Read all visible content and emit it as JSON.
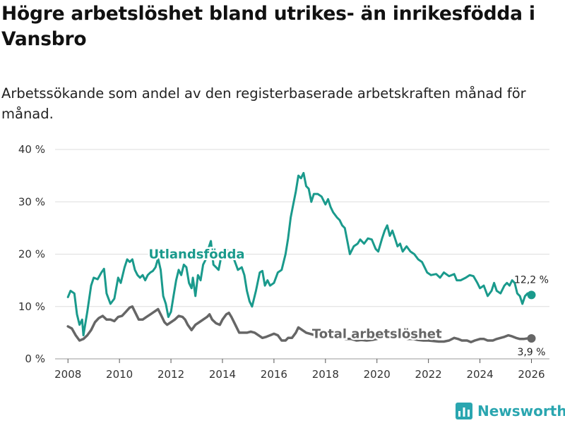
{
  "title": "Högre arbetslöshet bland utrikes- än inrikesfödda i Vansbro",
  "subtitle": "Arbetssökande som andel av den registerbaserade arbetskraften månad för månad.",
  "brand": {
    "name": "Newsworthy",
    "color": "#2aa6b0"
  },
  "chart_data": {
    "type": "line",
    "xlabel": "",
    "ylabel": "",
    "xlim": [
      2007.5,
      2026.7
    ],
    "ylim": [
      0,
      40
    ],
    "grid": true,
    "x_ticks": [
      2008,
      2010,
      2012,
      2014,
      2016,
      2018,
      2020,
      2022,
      2024,
      2026
    ],
    "x_tick_labels": [
      "2008",
      "2010",
      "2012",
      "2014",
      "2016",
      "2018",
      "2020",
      "2022",
      "2024",
      "2026"
    ],
    "y_ticks": [
      0,
      10,
      20,
      30,
      40
    ],
    "y_tick_labels": [
      "0 %",
      "10 %",
      "20 %",
      "30 %",
      "40 %"
    ],
    "series": [
      {
        "name": "Utlandsfödda",
        "color": "#1a9a8c",
        "end_label": "12,2 %",
        "points": [
          [
            2008.0,
            11.8
          ],
          [
            2008.1,
            13.0
          ],
          [
            2008.25,
            12.5
          ],
          [
            2008.35,
            8.5
          ],
          [
            2008.45,
            6.5
          ],
          [
            2008.55,
            7.5
          ],
          [
            2008.6,
            4.5
          ],
          [
            2008.75,
            9.0
          ],
          [
            2008.9,
            14.0
          ],
          [
            2009.0,
            15.5
          ],
          [
            2009.15,
            15.2
          ],
          [
            2009.3,
            16.5
          ],
          [
            2009.4,
            17.2
          ],
          [
            2009.5,
            12.5
          ],
          [
            2009.65,
            10.5
          ],
          [
            2009.8,
            11.5
          ],
          [
            2009.95,
            15.5
          ],
          [
            2010.05,
            14.5
          ],
          [
            2010.2,
            17.5
          ],
          [
            2010.3,
            19.0
          ],
          [
            2010.4,
            18.5
          ],
          [
            2010.5,
            19.0
          ],
          [
            2010.6,
            17.0
          ],
          [
            2010.7,
            16.0
          ],
          [
            2010.8,
            15.5
          ],
          [
            2010.9,
            16.0
          ],
          [
            2011.0,
            15.0
          ],
          [
            2011.1,
            16.0
          ],
          [
            2011.2,
            16.5
          ],
          [
            2011.3,
            16.8
          ],
          [
            2011.4,
            17.5
          ],
          [
            2011.5,
            19.2
          ],
          [
            2011.6,
            17.0
          ],
          [
            2011.7,
            12.0
          ],
          [
            2011.8,
            10.5
          ],
          [
            2011.9,
            8.0
          ],
          [
            2012.0,
            9.0
          ],
          [
            2012.1,
            12.0
          ],
          [
            2012.2,
            15.0
          ],
          [
            2012.3,
            17.0
          ],
          [
            2012.4,
            16.0
          ],
          [
            2012.5,
            18.0
          ],
          [
            2012.6,
            17.5
          ],
          [
            2012.7,
            14.5
          ],
          [
            2012.8,
            13.5
          ],
          [
            2012.85,
            15.5
          ],
          [
            2012.95,
            12.0
          ],
          [
            2013.05,
            16.0
          ],
          [
            2013.15,
            15.0
          ],
          [
            2013.25,
            18.0
          ],
          [
            2013.35,
            19.0
          ],
          [
            2013.45,
            21.0
          ],
          [
            2013.55,
            22.5
          ],
          [
            2013.65,
            18.0
          ],
          [
            2013.75,
            17.5
          ],
          [
            2013.85,
            17.0
          ],
          [
            2013.95,
            19.5
          ],
          [
            2014.05,
            20.5
          ],
          [
            2014.15,
            21.0
          ],
          [
            2014.3,
            20.0
          ],
          [
            2014.45,
            19.0
          ],
          [
            2014.6,
            17.0
          ],
          [
            2014.75,
            17.5
          ],
          [
            2014.85,
            16.0
          ],
          [
            2014.95,
            13.0
          ],
          [
            2015.05,
            11.0
          ],
          [
            2015.15,
            10.0
          ],
          [
            2015.3,
            13.0
          ],
          [
            2015.45,
            16.5
          ],
          [
            2015.55,
            16.8
          ],
          [
            2015.65,
            14.0
          ],
          [
            2015.75,
            15.0
          ],
          [
            2015.85,
            14.0
          ],
          [
            2016.0,
            14.5
          ],
          [
            2016.15,
            16.5
          ],
          [
            2016.3,
            17.0
          ],
          [
            2016.45,
            20.0
          ],
          [
            2016.55,
            23.0
          ],
          [
            2016.65,
            27.0
          ],
          [
            2016.75,
            29.5
          ],
          [
            2016.85,
            32.0
          ],
          [
            2016.95,
            35.0
          ],
          [
            2017.05,
            34.5
          ],
          [
            2017.15,
            35.5
          ],
          [
            2017.25,
            33.0
          ],
          [
            2017.35,
            32.5
          ],
          [
            2017.45,
            30.0
          ],
          [
            2017.55,
            31.5
          ],
          [
            2017.7,
            31.5
          ],
          [
            2017.85,
            31.0
          ],
          [
            2018.0,
            29.5
          ],
          [
            2018.1,
            30.5
          ],
          [
            2018.2,
            29.0
          ],
          [
            2018.3,
            28.0
          ],
          [
            2018.45,
            27.0
          ],
          [
            2018.55,
            26.5
          ],
          [
            2018.65,
            25.5
          ],
          [
            2018.75,
            25.0
          ],
          [
            2018.85,
            22.5
          ],
          [
            2018.95,
            20.0
          ],
          [
            2019.1,
            21.5
          ],
          [
            2019.25,
            22.0
          ],
          [
            2019.35,
            22.8
          ],
          [
            2019.5,
            22.0
          ],
          [
            2019.65,
            23.0
          ],
          [
            2019.8,
            22.8
          ],
          [
            2019.95,
            21.0
          ],
          [
            2020.05,
            20.5
          ],
          [
            2020.2,
            23.0
          ],
          [
            2020.3,
            24.5
          ],
          [
            2020.4,
            25.5
          ],
          [
            2020.5,
            23.5
          ],
          [
            2020.6,
            24.5
          ],
          [
            2020.7,
            23.0
          ],
          [
            2020.8,
            21.5
          ],
          [
            2020.9,
            22.0
          ],
          [
            2021.0,
            20.5
          ],
          [
            2021.15,
            21.5
          ],
          [
            2021.3,
            20.5
          ],
          [
            2021.45,
            20.0
          ],
          [
            2021.6,
            19.0
          ],
          [
            2021.75,
            18.5
          ],
          [
            2021.85,
            17.5
          ],
          [
            2021.95,
            16.5
          ],
          [
            2022.1,
            16.0
          ],
          [
            2022.3,
            16.2
          ],
          [
            2022.45,
            15.5
          ],
          [
            2022.6,
            16.5
          ],
          [
            2022.8,
            15.8
          ],
          [
            2023.0,
            16.2
          ],
          [
            2023.1,
            15.0
          ],
          [
            2023.25,
            15.0
          ],
          [
            2023.45,
            15.5
          ],
          [
            2023.6,
            16.0
          ],
          [
            2023.75,
            15.8
          ],
          [
            2023.9,
            14.5
          ],
          [
            2024.0,
            13.5
          ],
          [
            2024.15,
            14.0
          ],
          [
            2024.3,
            12.0
          ],
          [
            2024.45,
            13.0
          ],
          [
            2024.55,
            14.5
          ],
          [
            2024.65,
            13.0
          ],
          [
            2024.8,
            12.5
          ],
          [
            2024.95,
            14.0
          ],
          [
            2025.05,
            14.5
          ],
          [
            2025.15,
            14.0
          ],
          [
            2025.25,
            15.0
          ],
          [
            2025.35,
            14.5
          ],
          [
            2025.45,
            12.5
          ],
          [
            2025.55,
            12.0
          ],
          [
            2025.65,
            10.5
          ],
          [
            2025.75,
            12.0
          ],
          [
            2025.85,
            12.5
          ],
          [
            2026.0,
            12.2
          ]
        ]
      },
      {
        "name": "Total arbetslöshet",
        "color": "#666666",
        "end_label": "3,9 %",
        "points": [
          [
            2008.0,
            6.2
          ],
          [
            2008.15,
            5.8
          ],
          [
            2008.3,
            4.5
          ],
          [
            2008.45,
            3.5
          ],
          [
            2008.6,
            3.8
          ],
          [
            2008.75,
            4.5
          ],
          [
            2008.9,
            5.5
          ],
          [
            2009.05,
            7.0
          ],
          [
            2009.2,
            7.8
          ],
          [
            2009.35,
            8.2
          ],
          [
            2009.5,
            7.5
          ],
          [
            2009.65,
            7.5
          ],
          [
            2009.8,
            7.2
          ],
          [
            2009.95,
            8.0
          ],
          [
            2010.1,
            8.2
          ],
          [
            2010.25,
            9.0
          ],
          [
            2010.4,
            9.8
          ],
          [
            2010.5,
            10.0
          ],
          [
            2010.6,
            9.0
          ],
          [
            2010.75,
            7.5
          ],
          [
            2010.9,
            7.5
          ],
          [
            2011.05,
            8.0
          ],
          [
            2011.2,
            8.5
          ],
          [
            2011.35,
            9.0
          ],
          [
            2011.5,
            9.5
          ],
          [
            2011.6,
            8.5
          ],
          [
            2011.75,
            7.0
          ],
          [
            2011.85,
            6.5
          ],
          [
            2012.0,
            7.0
          ],
          [
            2012.15,
            7.5
          ],
          [
            2012.3,
            8.2
          ],
          [
            2012.45,
            8.0
          ],
          [
            2012.55,
            7.5
          ],
          [
            2012.65,
            6.5
          ],
          [
            2012.8,
            5.5
          ],
          [
            2012.95,
            6.5
          ],
          [
            2013.1,
            7.0
          ],
          [
            2013.25,
            7.5
          ],
          [
            2013.4,
            8.0
          ],
          [
            2013.5,
            8.5
          ],
          [
            2013.6,
            7.5
          ],
          [
            2013.75,
            6.8
          ],
          [
            2013.9,
            6.5
          ],
          [
            2014.0,
            7.5
          ],
          [
            2014.15,
            8.5
          ],
          [
            2014.25,
            8.8
          ],
          [
            2014.35,
            8.0
          ],
          [
            2014.5,
            6.5
          ],
          [
            2014.65,
            5.0
          ],
          [
            2014.8,
            5.0
          ],
          [
            2014.95,
            5.0
          ],
          [
            2015.1,
            5.2
          ],
          [
            2015.25,
            5.0
          ],
          [
            2015.4,
            4.5
          ],
          [
            2015.55,
            4.0
          ],
          [
            2015.7,
            4.2
          ],
          [
            2015.85,
            4.5
          ],
          [
            2016.0,
            4.8
          ],
          [
            2016.15,
            4.5
          ],
          [
            2016.3,
            3.5
          ],
          [
            2016.45,
            3.5
          ],
          [
            2016.55,
            4.0
          ],
          [
            2016.7,
            4.0
          ],
          [
            2016.85,
            5.0
          ],
          [
            2016.95,
            6.0
          ],
          [
            2017.1,
            5.5
          ],
          [
            2017.25,
            5.0
          ],
          [
            2017.4,
            4.8
          ],
          [
            2017.6,
            4.5
          ],
          [
            2017.8,
            4.5
          ],
          [
            2018.0,
            4.5
          ],
          [
            2018.2,
            4.3
          ],
          [
            2018.4,
            4.0
          ],
          [
            2018.6,
            4.0
          ],
          [
            2018.8,
            3.8
          ],
          [
            2019.0,
            3.8
          ],
          [
            2019.2,
            3.5
          ],
          [
            2019.4,
            3.6
          ],
          [
            2019.6,
            3.5
          ],
          [
            2019.8,
            3.6
          ],
          [
            2020.0,
            3.8
          ],
          [
            2020.2,
            4.2
          ],
          [
            2020.4,
            4.5
          ],
          [
            2020.6,
            4.2
          ],
          [
            2020.8,
            4.0
          ],
          [
            2021.0,
            4.0
          ],
          [
            2021.2,
            3.8
          ],
          [
            2021.4,
            3.8
          ],
          [
            2021.6,
            3.6
          ],
          [
            2021.8,
            3.5
          ],
          [
            2022.0,
            3.5
          ],
          [
            2022.2,
            3.4
          ],
          [
            2022.4,
            3.3
          ],
          [
            2022.6,
            3.3
          ],
          [
            2022.8,
            3.5
          ],
          [
            2023.0,
            4.0
          ],
          [
            2023.15,
            3.8
          ],
          [
            2023.3,
            3.5
          ],
          [
            2023.5,
            3.5
          ],
          [
            2023.65,
            3.2
          ],
          [
            2023.8,
            3.5
          ],
          [
            2024.0,
            3.8
          ],
          [
            2024.15,
            3.8
          ],
          [
            2024.3,
            3.5
          ],
          [
            2024.5,
            3.5
          ],
          [
            2024.65,
            3.8
          ],
          [
            2024.8,
            4.0
          ],
          [
            2024.95,
            4.2
          ],
          [
            2025.1,
            4.5
          ],
          [
            2025.25,
            4.3
          ],
          [
            2025.4,
            4.0
          ],
          [
            2025.55,
            3.8
          ],
          [
            2025.7,
            3.8
          ],
          [
            2025.85,
            3.9
          ],
          [
            2026.0,
            3.9
          ]
        ]
      }
    ]
  }
}
